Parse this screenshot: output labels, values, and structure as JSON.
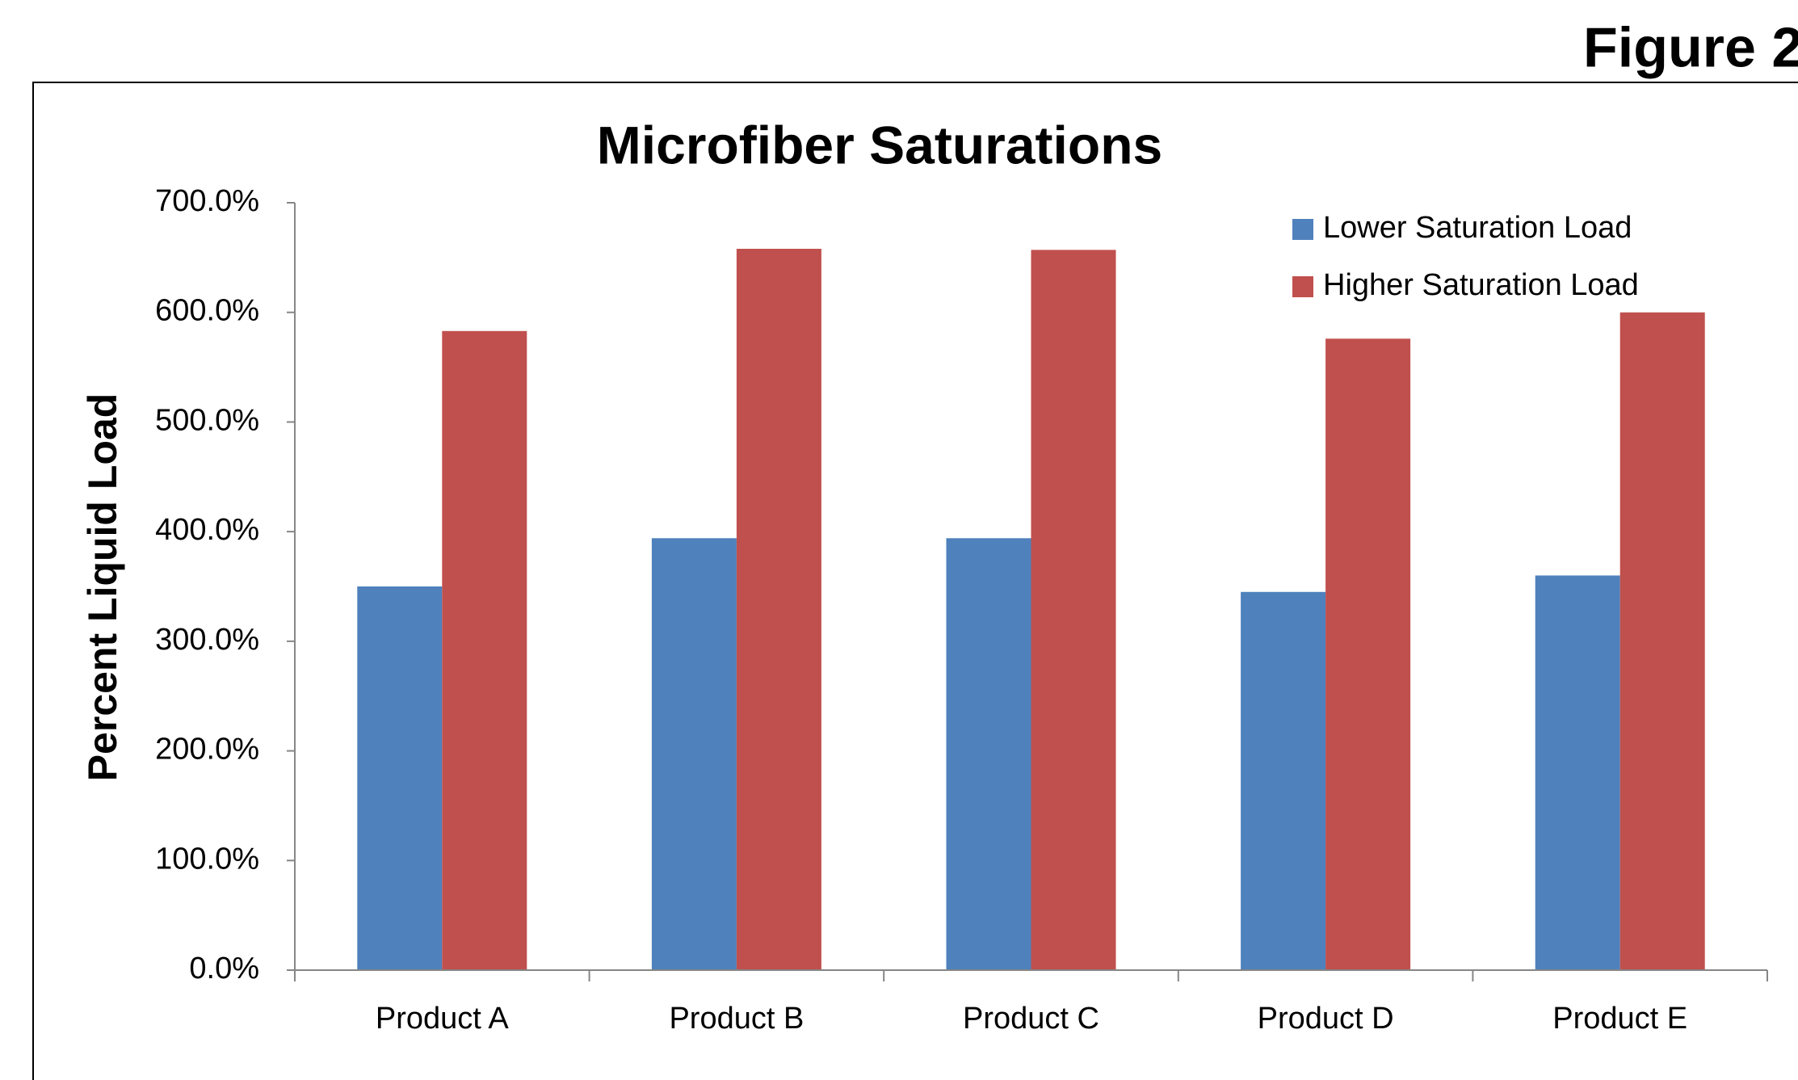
{
  "figure_label": "Figure 2",
  "chart_data": {
    "type": "bar",
    "title": "Microfiber Saturations",
    "y_label": "Percent Liquid Load",
    "categories": [
      "Product A",
      "Product B",
      "Product C",
      "Product D",
      "Product E"
    ],
    "series": [
      {
        "name": "Lower Saturation Load",
        "color": "#4f81bd",
        "values": [
          350,
          394,
          394,
          345,
          360
        ]
      },
      {
        "name": "Higher Saturation Load",
        "color": "#c0504d",
        "values": [
          583,
          658,
          657,
          576,
          600
        ]
      }
    ],
    "ylim": [
      0,
      700
    ],
    "yticks": [
      {
        "value": 0,
        "label": "0.0%"
      },
      {
        "value": 100,
        "label": "100.0%"
      },
      {
        "value": 200,
        "label": "200.0%"
      },
      {
        "value": 300,
        "label": "300.0%"
      },
      {
        "value": 400,
        "label": "400.0%"
      },
      {
        "value": 500,
        "label": "500.0%"
      },
      {
        "value": 600,
        "label": "600.0%"
      },
      {
        "value": 700,
        "label": "700.0%"
      }
    ],
    "legend": "top-right"
  }
}
